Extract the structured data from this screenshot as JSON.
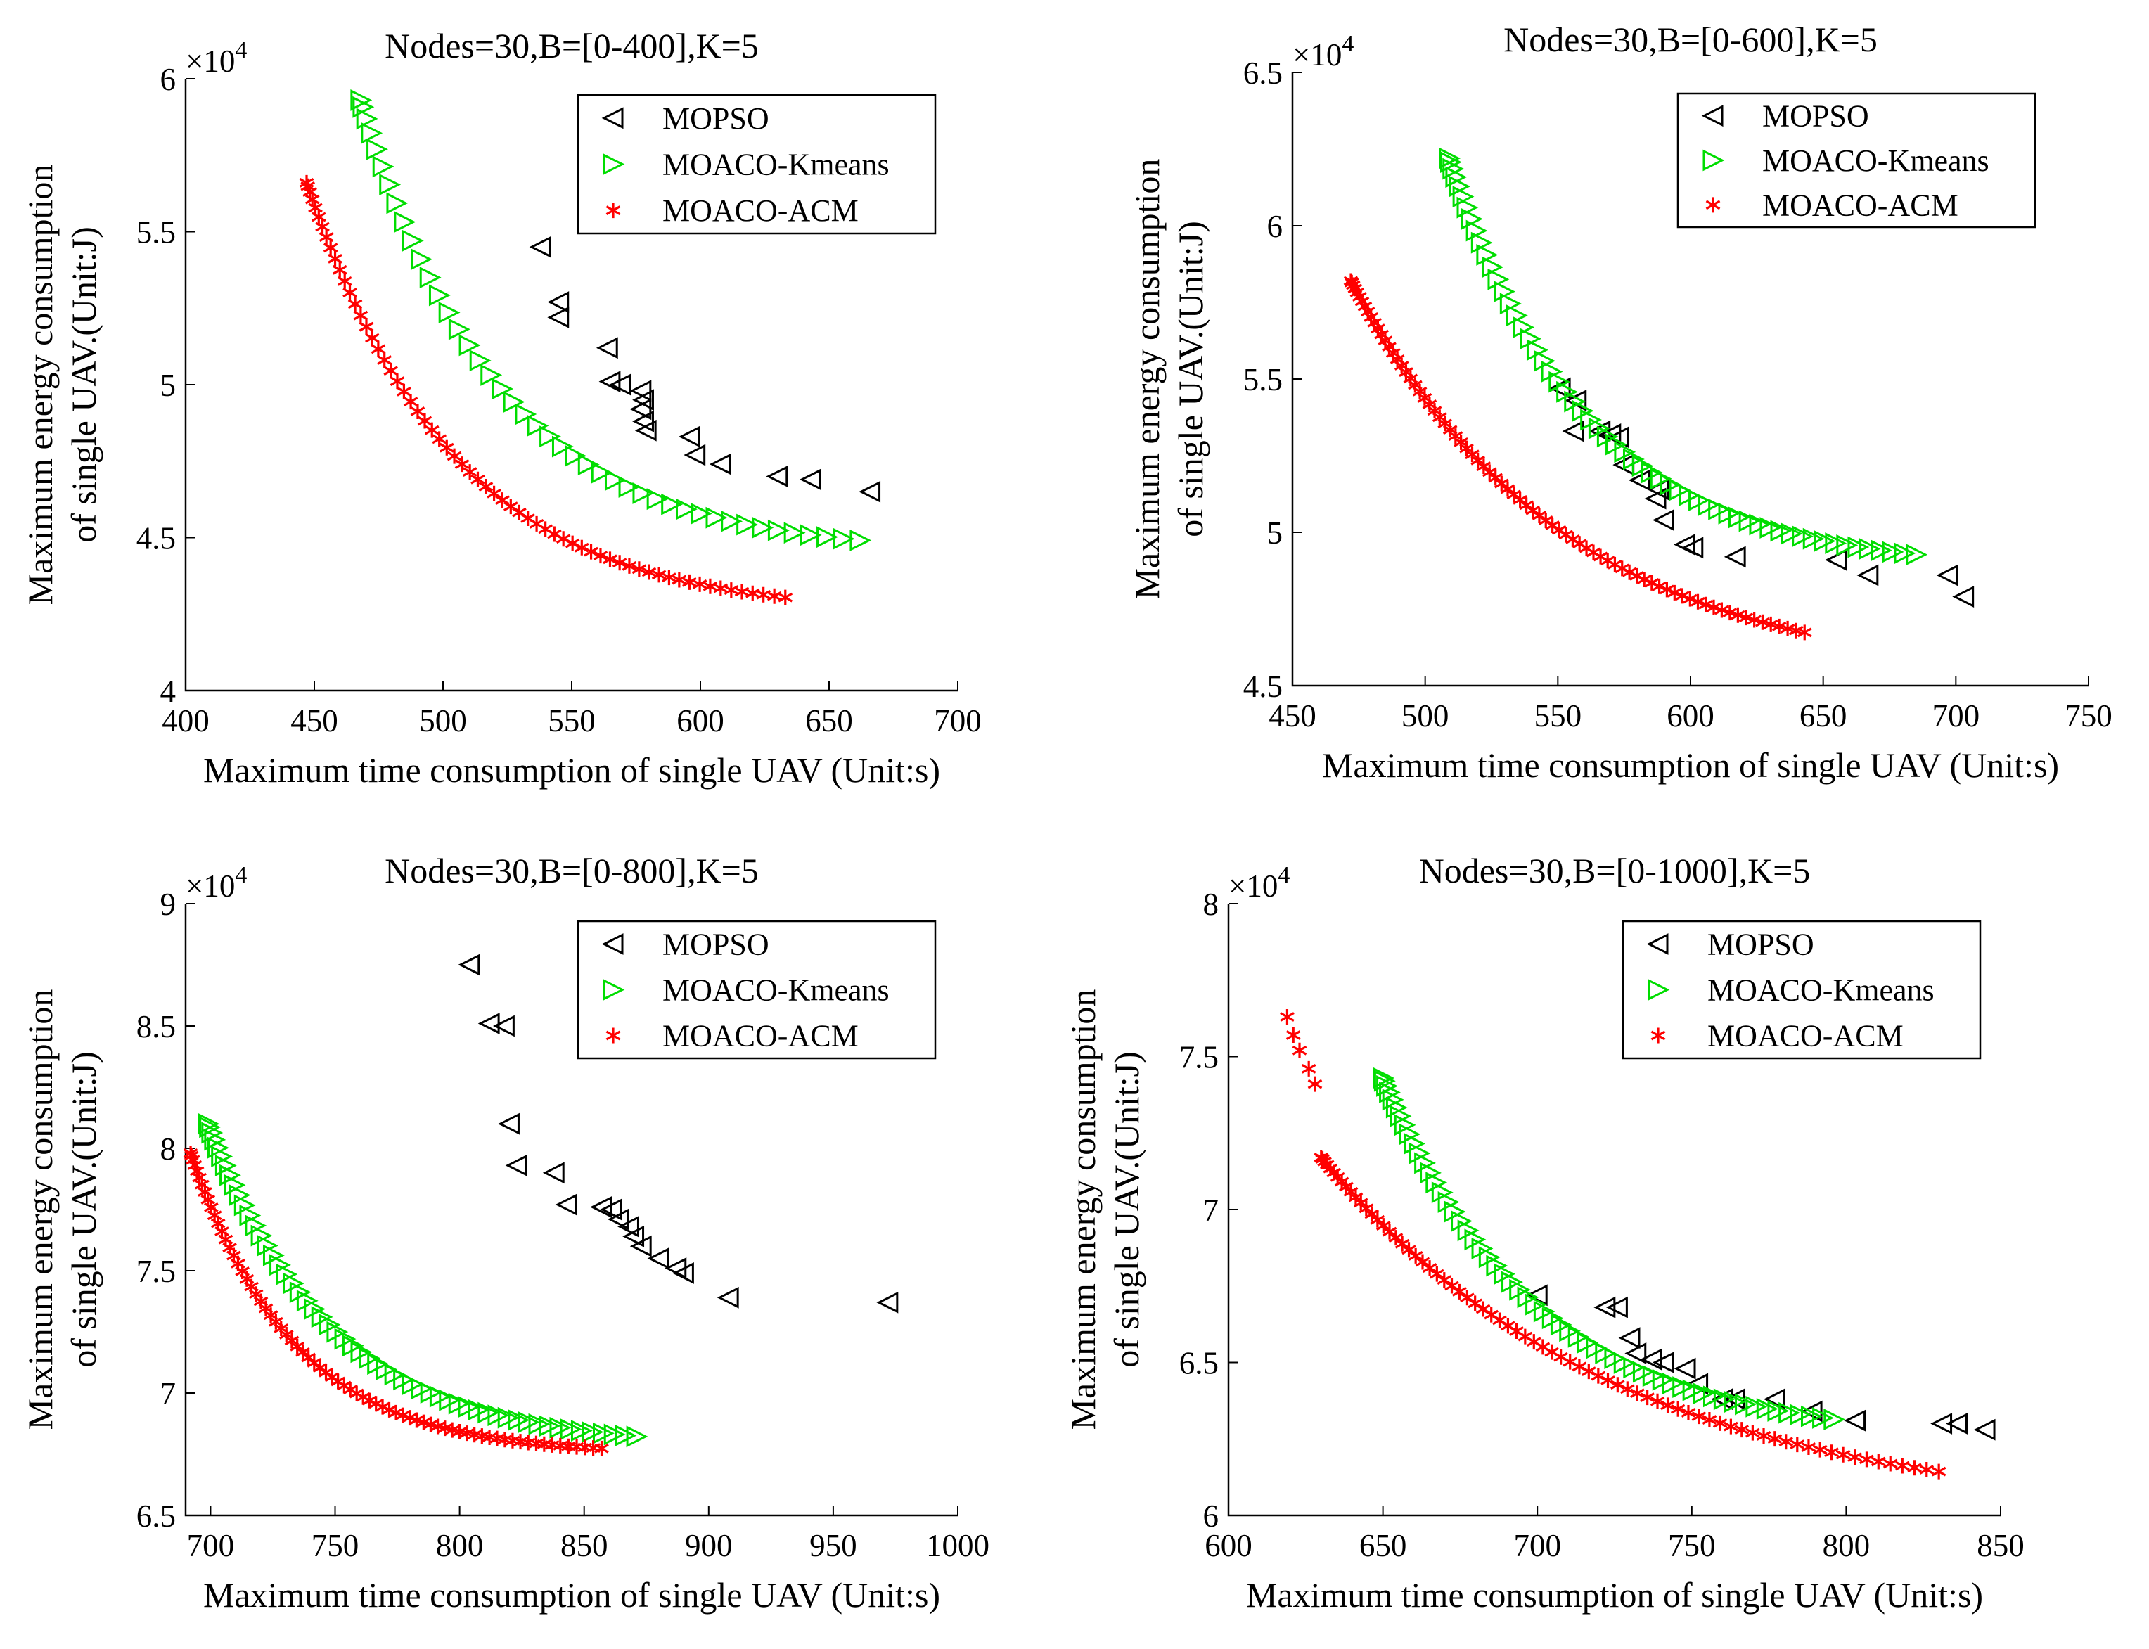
{
  "chart_data": [
    {
      "type": "scatter",
      "title": "Nodes=30,B=[0-400],K=5",
      "xlabel": "Maximum time consumption of single UAV (Unit:s)",
      "ylabel_lines": [
        "Maximum energy consumption",
        "of single UAV.(Unit:J)"
      ],
      "y_multiplier": {
        "base": "×10",
        "exp": "4"
      },
      "xlim": [
        400,
        700
      ],
      "ylim": [
        4,
        6
      ],
      "xticks": [
        400,
        450,
        500,
        550,
        600,
        650,
        700
      ],
      "yticks": [
        4,
        4.5,
        5,
        5.5,
        6
      ],
      "ytick_labels": [
        "4",
        "4.5",
        "5",
        "5.5",
        "6"
      ],
      "legend": [
        "MOPSO",
        "MOACO-Kmeans",
        "MOACO-ACM"
      ],
      "curves": {
        "kmeans": {
          "x0": 468,
          "x1": 662,
          "n": 44,
          "y0": 5.93,
          "yinf": 4.45,
          "k": 0.0185
        },
        "acm": {
          "x0": 447,
          "x1": 633,
          "n": 64,
          "y0": 5.66,
          "yinf": 4.25,
          "k": 0.0175
        }
      },
      "series": [
        {
          "name": "MOPSO",
          "marker": "left-triangle",
          "color": "#000000",
          "points": [
            [
              538,
              5.45
            ],
            [
              545,
              5.27
            ],
            [
              545,
              5.22
            ],
            [
              564,
              5.12
            ],
            [
              565,
              5.01
            ],
            [
              569,
              5.0
            ],
            [
              577,
              4.98
            ],
            [
              578,
              4.95
            ],
            [
              577,
              4.92
            ],
            [
              578,
              4.88
            ],
            [
              579,
              4.85
            ],
            [
              596,
              4.83
            ],
            [
              598,
              4.77
            ],
            [
              608,
              4.74
            ],
            [
              630,
              4.7
            ],
            [
              643,
              4.69
            ],
            [
              666,
              4.65
            ]
          ]
        },
        {
          "name": "MOACO-Kmeans",
          "marker": "right-triangle",
          "color": "#00dd00",
          "points": []
        },
        {
          "name": "MOACO-ACM",
          "marker": "asterisk",
          "color": "#ff0000",
          "points": []
        }
      ]
    },
    {
      "type": "scatter",
      "title": "Nodes=30,B=[0-600],K=5",
      "xlabel": "Maximum time consumption of single UAV (Unit:s)",
      "ylabel_lines": [
        "Maximum energy consumption",
        "of single UAV.(Unit:J)"
      ],
      "y_multiplier": {
        "base": "×10",
        "exp": "4"
      },
      "xlim": [
        450,
        750
      ],
      "ylim": [
        4.5,
        6.5
      ],
      "xticks": [
        450,
        500,
        550,
        600,
        650,
        700,
        750
      ],
      "yticks": [
        4.5,
        5,
        5.5,
        6,
        6.5
      ],
      "ytick_labels": [
        "4.5",
        "5",
        "5.5",
        "6",
        "6.5"
      ],
      "legend": [
        "MOPSO",
        "MOACO-Kmeans",
        "MOACO-ACM"
      ],
      "curves": {
        "kmeans": {
          "x0": 509,
          "x1": 685,
          "n": 58,
          "y0": 6.22,
          "yinf": 4.88,
          "k": 0.019
        },
        "acm": {
          "x0": 472,
          "x1": 643,
          "n": 78,
          "y0": 5.82,
          "yinf": 4.52,
          "k": 0.0125
        }
      },
      "series": [
        {
          "name": "MOPSO",
          "marker": "left-triangle",
          "color": "#000000",
          "points": [
            [
              551,
              5.47
            ],
            [
              557,
              5.43
            ],
            [
              556,
              5.33
            ],
            [
              566,
              5.33
            ],
            [
              570,
              5.32
            ],
            [
              573,
              5.31
            ],
            [
              575,
              5.22
            ],
            [
              581,
              5.17
            ],
            [
              588,
              5.14
            ],
            [
              587,
              5.11
            ],
            [
              590,
              5.04
            ],
            [
              598,
              4.96
            ],
            [
              601,
              4.95
            ],
            [
              617,
              4.92
            ],
            [
              655,
              4.91
            ],
            [
              667,
              4.86
            ],
            [
              697,
              4.86
            ],
            [
              703,
              4.79
            ]
          ]
        },
        {
          "name": "MOACO-Kmeans",
          "marker": "right-triangle",
          "color": "#00dd00",
          "points": []
        },
        {
          "name": "MOACO-ACM",
          "marker": "asterisk",
          "color": "#ff0000",
          "points": []
        }
      ]
    },
    {
      "type": "scatter",
      "title": "Nodes=30,B=[0-800],K=5",
      "xlabel": "Maximum time consumption of single UAV (Unit:s)",
      "ylabel_lines": [
        "Maximum energy consumption",
        "of single UAV.(Unit:J)"
      ],
      "y_multiplier": {
        "base": "×10",
        "exp": "4"
      },
      "xlim": [
        690,
        1000
      ],
      "ylim": [
        6.5,
        9
      ],
      "xticks": [
        700,
        750,
        800,
        850,
        900,
        950,
        1000
      ],
      "yticks": [
        6.5,
        7,
        7.5,
        8,
        8.5,
        9
      ],
      "ytick_labels": [
        "6.5",
        "7",
        "7.5",
        "8",
        "8.5",
        "9"
      ],
      "legend": [
        "MOPSO",
        "MOACO-Kmeans",
        "MOACO-ACM"
      ],
      "curves": {
        "kmeans": {
          "x0": 699,
          "x1": 871,
          "n": 56,
          "y0": 8.1,
          "yinf": 6.78,
          "k": 0.02
        },
        "acm": {
          "x0": 692,
          "x1": 857,
          "n": 72,
          "y0": 7.98,
          "yinf": 6.75,
          "k": 0.024
        }
      },
      "series": [
        {
          "name": "MOPSO",
          "marker": "left-triangle",
          "color": "#000000",
          "points": [
            [
              804,
              8.75
            ],
            [
              812,
              8.51
            ],
            [
              818,
              8.5
            ],
            [
              820,
              8.1
            ],
            [
              823,
              7.93
            ],
            [
              838,
              7.9
            ],
            [
              843,
              7.77
            ],
            [
              857,
              7.76
            ],
            [
              861,
              7.75
            ],
            [
              864,
              7.71
            ],
            [
              868,
              7.68
            ],
            [
              870,
              7.64
            ],
            [
              873,
              7.6
            ],
            [
              880,
              7.55
            ],
            [
              887,
              7.51
            ],
            [
              890,
              7.49
            ],
            [
              908,
              7.39
            ],
            [
              972,
              7.37
            ]
          ]
        },
        {
          "name": "MOACO-Kmeans",
          "marker": "right-triangle",
          "color": "#00dd00",
          "points": []
        },
        {
          "name": "MOACO-ACM",
          "marker": "asterisk",
          "color": "#ff0000",
          "points": []
        }
      ]
    },
    {
      "type": "scatter",
      "title": "Nodes=30,B=[0-1000],K=5",
      "xlabel": "Maximum time consumption of single UAV (Unit:s)",
      "ylabel_lines": [
        "Maximum energy consumption",
        "of single UAV.(Unit:J)"
      ],
      "y_multiplier": {
        "base": "×10",
        "exp": "4"
      },
      "xlim": [
        600,
        850
      ],
      "ylim": [
        6,
        8
      ],
      "xticks": [
        600,
        650,
        700,
        750,
        800,
        850
      ],
      "yticks": [
        6,
        6.5,
        7,
        7.5,
        8
      ],
      "ytick_labels": [
        "6",
        "6.5",
        "7",
        "7.5",
        "8"
      ],
      "legend": [
        "MOPSO",
        "MOACO-Kmeans",
        "MOACO-ACM"
      ],
      "curves": {
        "kmeans": {
          "x0": 650,
          "x1": 796,
          "n": 58,
          "y0": 7.43,
          "yinf": 6.25,
          "k": 0.02
        },
        "acm": {
          "x0": 630,
          "x1": 830,
          "n": 74,
          "y0": 7.17,
          "yinf": 6.0,
          "k": 0.0105
        }
      },
      "series": [
        {
          "name": "MOPSO",
          "marker": "left-triangle",
          "color": "#000000",
          "points": [
            [
              700,
              6.72
            ],
            [
              722,
              6.68
            ],
            [
              726,
              6.68
            ],
            [
              730,
              6.58
            ],
            [
              732,
              6.53
            ],
            [
              737,
              6.51
            ],
            [
              741,
              6.5
            ],
            [
              748,
              6.48
            ],
            [
              752,
              6.43
            ],
            [
              760,
              6.38
            ],
            [
              764,
              6.38
            ],
            [
              777,
              6.38
            ],
            [
              789,
              6.34
            ],
            [
              803,
              6.31
            ],
            [
              831,
              6.3
            ],
            [
              836,
              6.3
            ],
            [
              845,
              6.28
            ]
          ]
        },
        {
          "name": "MOACO-Kmeans",
          "marker": "right-triangle",
          "color": "#00dd00",
          "points": []
        },
        {
          "name": "MOACO-ACM",
          "marker": "asterisk",
          "color": "#ff0000",
          "points": [
            [
              619,
              7.63
            ],
            [
              621,
              7.57
            ],
            [
              623,
              7.52
            ],
            [
              626,
              7.46
            ],
            [
              628,
              7.41
            ]
          ]
        }
      ]
    }
  ]
}
